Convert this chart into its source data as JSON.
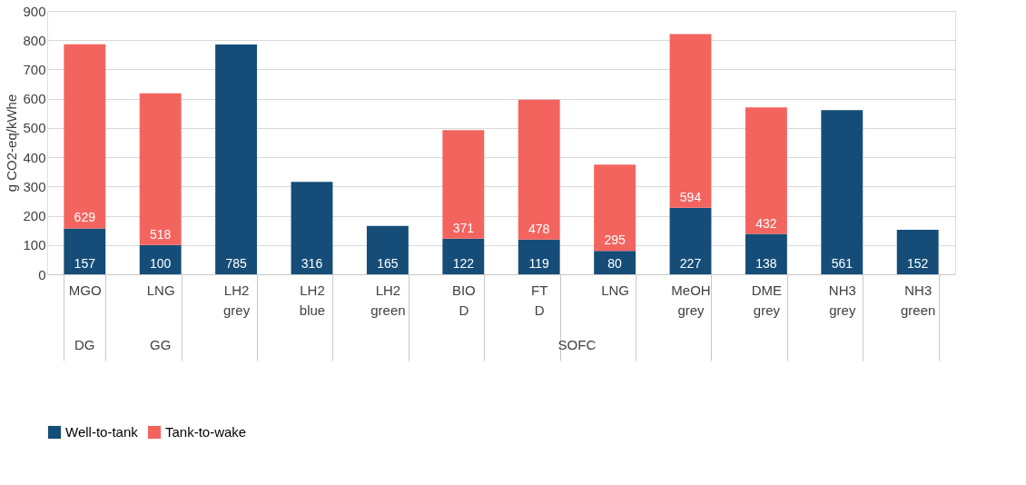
{
  "chart_data": {
    "type": "bar",
    "stacked": true,
    "ylabel": "g CO2-eq/kWhe",
    "categories": [
      "MGO",
      "LNG",
      "LH2 grey",
      "LH2 blue",
      "LH2 green",
      "BIO D",
      "FT D",
      "LNG",
      "MeOH grey",
      "DME grey",
      "NH3 grey",
      "NH3 green"
    ],
    "series": [
      {
        "name": "Well-to-tank",
        "color": "#154d78",
        "values": [
          157,
          100,
          785,
          316,
          165,
          122,
          119,
          80,
          227,
          138,
          561,
          152
        ]
      },
      {
        "name": "Tank-to-wake",
        "color": "#f4645f",
        "values": [
          629,
          518,
          null,
          null,
          null,
          371,
          478,
          295,
          594,
          432,
          null,
          null
        ]
      }
    ],
    "ylim": [
      0,
      900
    ],
    "yticks": [
      0,
      100,
      200,
      300,
      400,
      500,
      600,
      700,
      800,
      900
    ],
    "grid": "y",
    "legend": "bottom",
    "data_labels": true,
    "annotations": [
      "DG",
      "GG",
      "SOFC"
    ]
  }
}
